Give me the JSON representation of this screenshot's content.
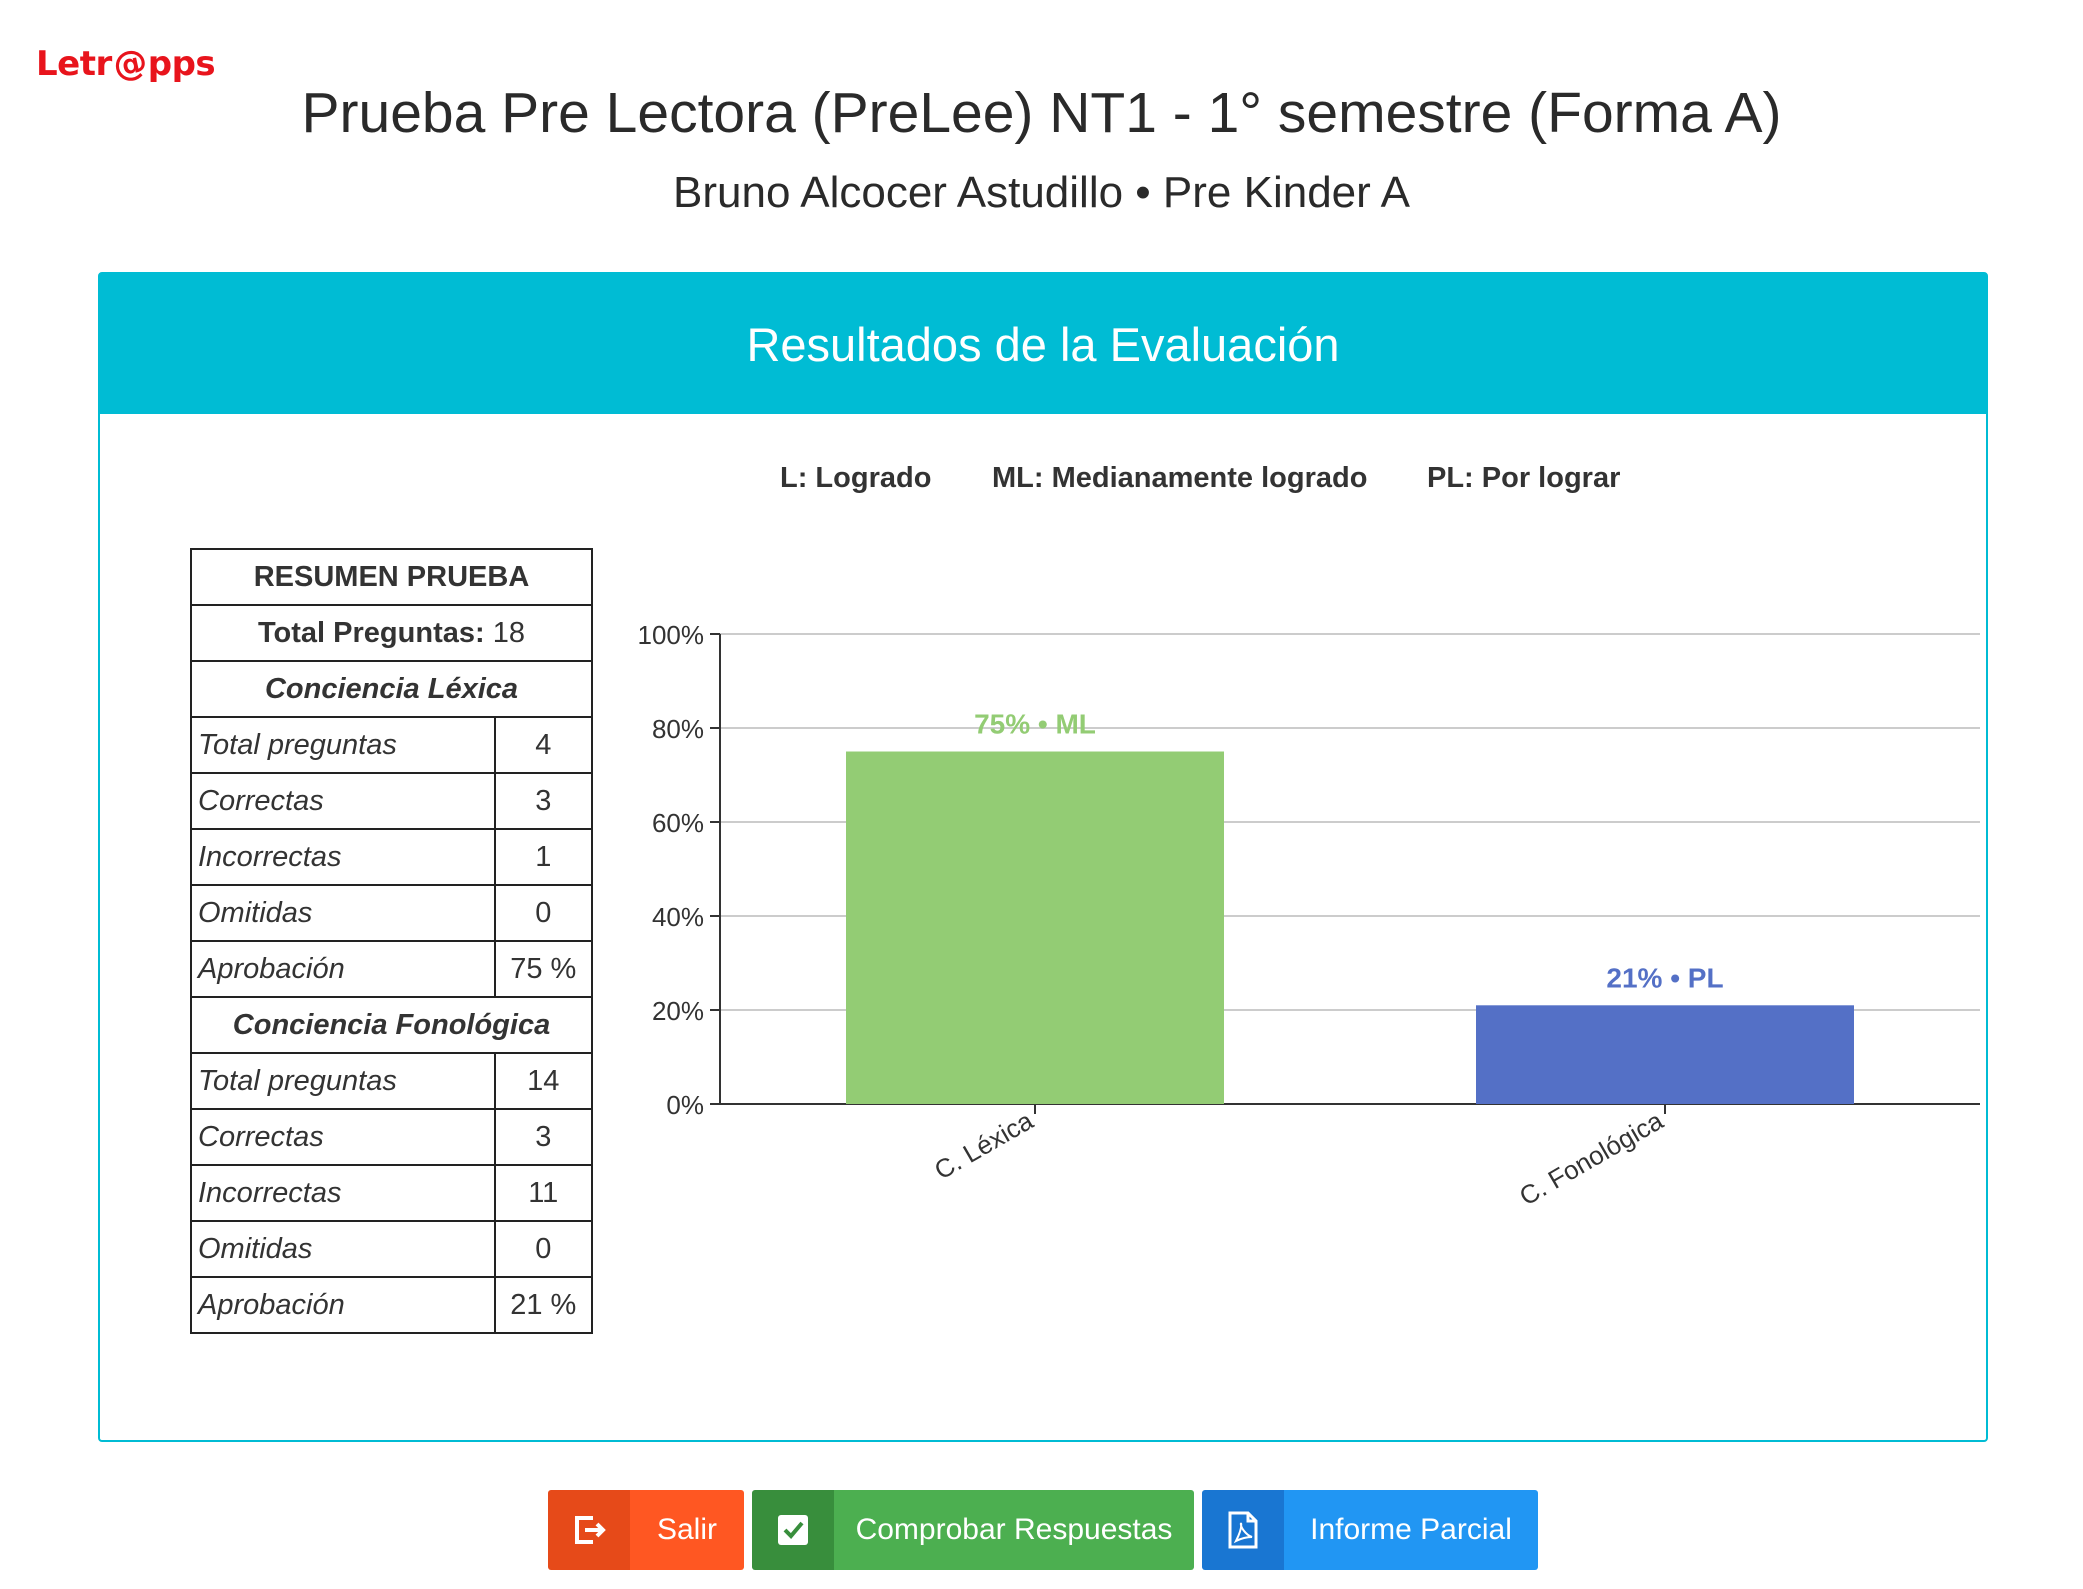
{
  "logo": {
    "pre": "Letr",
    "at": "@",
    "post": "pps"
  },
  "title": "Prueba Pre Lectora (PreLee) NT1 - 1° semestre (Forma A)",
  "subtitle": "Bruno Alcocer Astudillo • Pre Kinder A",
  "card": {
    "header": "Resultados de la Evaluación",
    "legend": [
      "L: Logrado",
      "ML: Medianamente logrado",
      "PL: Por lograr"
    ]
  },
  "summary": {
    "heading": "RESUMEN PRUEBA",
    "total_label": "Total Preguntas",
    "total_value": "18",
    "sections": [
      {
        "name": "Conciencia Léxica",
        "rows": [
          {
            "label": "Total preguntas",
            "value": "4"
          },
          {
            "label": "Correctas",
            "value": "3"
          },
          {
            "label": "Incorrectas",
            "value": "1"
          },
          {
            "label": "Omitidas",
            "value": "0"
          },
          {
            "label": "Aprobación",
            "value": "75 %"
          }
        ]
      },
      {
        "name": "Conciencia Fonológica",
        "rows": [
          {
            "label": "Total preguntas",
            "value": "14"
          },
          {
            "label": "Correctas",
            "value": "3"
          },
          {
            "label": "Incorrectas",
            "value": "11"
          },
          {
            "label": "Omitidas",
            "value": "0"
          },
          {
            "label": "Aprobación",
            "value": "21 %"
          }
        ]
      }
    ]
  },
  "chart_data": {
    "type": "bar",
    "categories": [
      "C. Léxica",
      "C. Fonológica"
    ],
    "values": [
      75,
      21
    ],
    "data_labels": [
      "75% • ML",
      "21% • PL"
    ],
    "colors": [
      "#93cc74",
      "#5470c6"
    ],
    "ylim": [
      0,
      100
    ],
    "yticks": [
      "0%",
      "20%",
      "40%",
      "60%",
      "80%",
      "100%"
    ],
    "grid": true
  },
  "buttons": {
    "salir": "Salir",
    "comprobar": "Comprobar Respuestas",
    "informe": "Informe Parcial"
  }
}
